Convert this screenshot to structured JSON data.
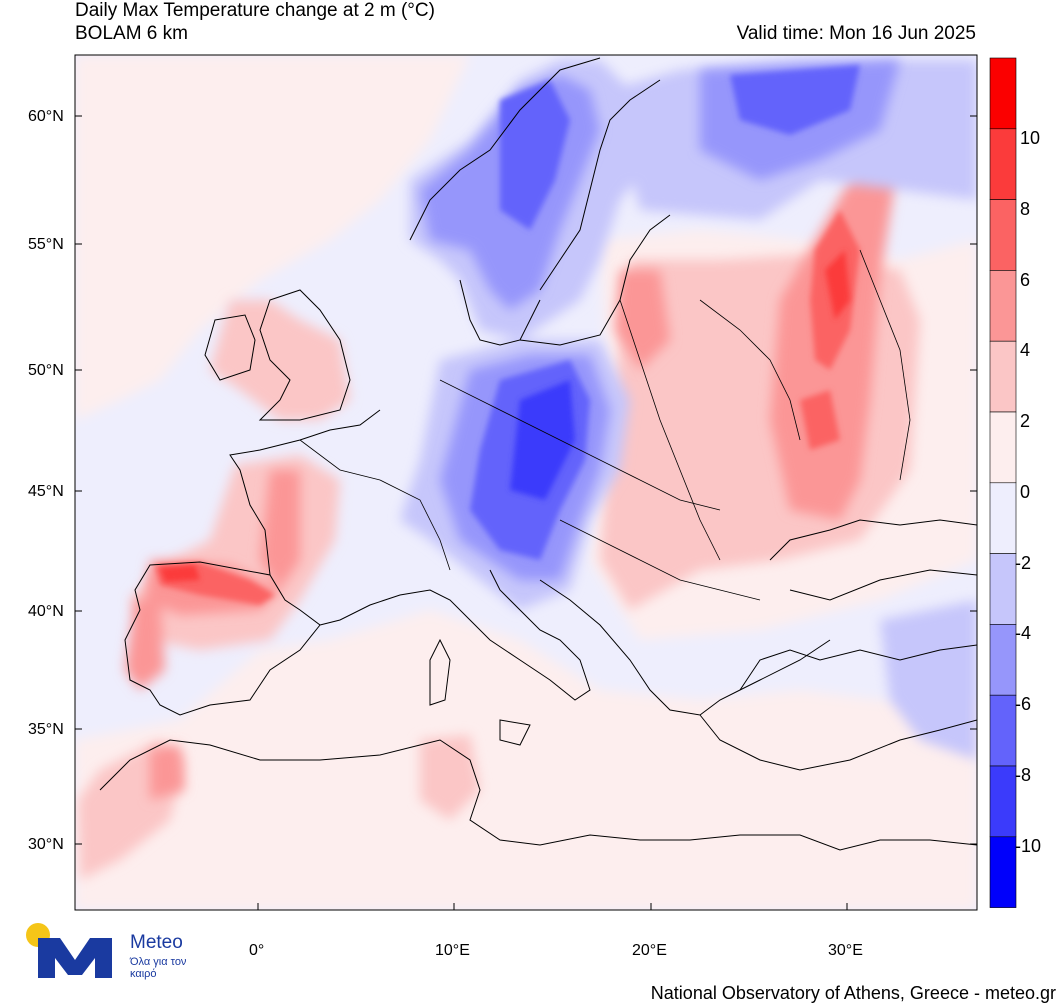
{
  "title": {
    "line1": "Daily Max Temperature change at 2 m (°C)",
    "line2": "BOLAM 6 km",
    "valid_time": "Valid time: Mon 16 Jun 2025"
  },
  "map": {
    "lat_labels": [
      "60°N",
      "55°N",
      "50°N",
      "45°N",
      "40°N",
      "35°N",
      "30°N"
    ],
    "lon_labels": [
      "0°",
      "10°E",
      "20°E",
      "30°E"
    ]
  },
  "colorbar": {
    "labels": [
      "10",
      "8",
      "6",
      "4",
      "2",
      "0",
      "-2",
      "-4",
      "-6",
      "-8",
      "-10"
    ],
    "colors": [
      "#fb0000",
      "#fb3b3b",
      "#fb6363",
      "#fb9696",
      "#fbc6c6",
      "#fdeeee",
      "#eeeefd",
      "#c6c6fb",
      "#9696fb",
      "#6363fb",
      "#3b3bfb",
      "#0000fb"
    ]
  },
  "logo": {
    "name": "Meteo",
    "slogan": "Όλα για τον καιρό",
    "sun_color": "#f5c518",
    "brand_color": "#1a3aa0"
  },
  "footer": "National Observatory of Athens, Greece - meteo.gr"
}
